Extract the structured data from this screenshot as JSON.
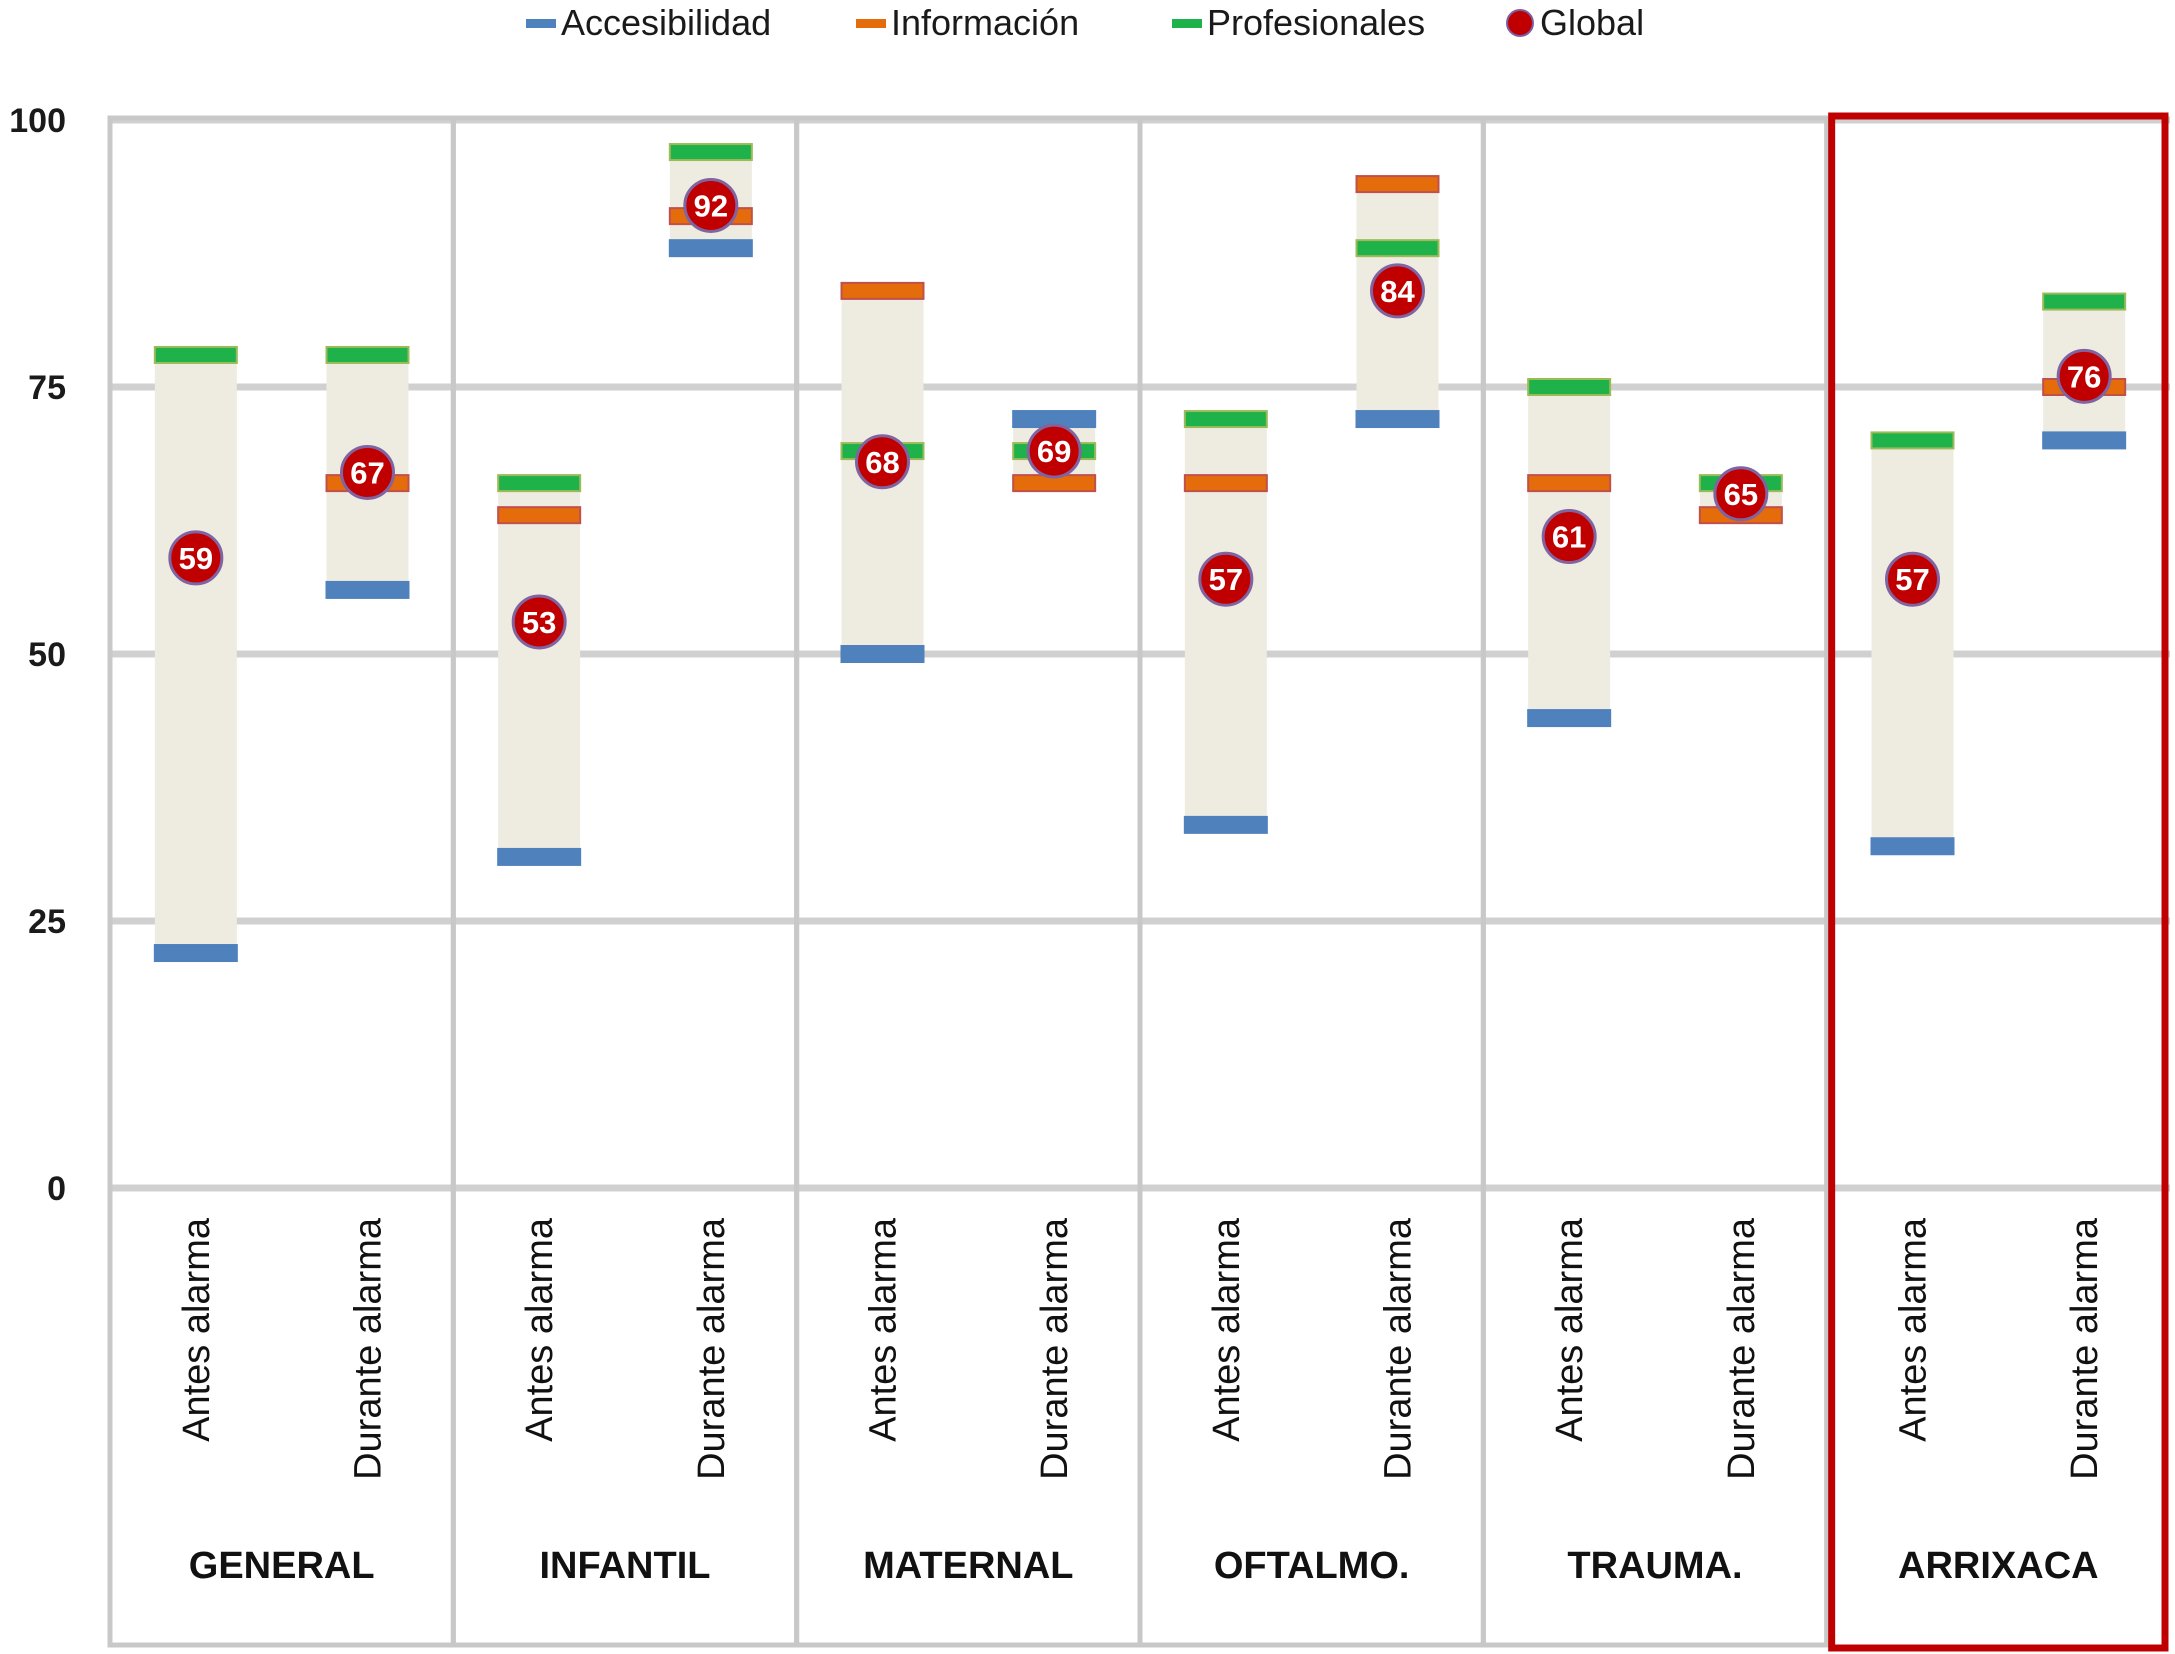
{
  "colors": {
    "accesibilidad": "#4f81bd",
    "informacion": "#e46c0a",
    "profesionales": "#1fb14a",
    "global": "#c00000",
    "range": "#eeebe0",
    "highlight": "#c00000"
  },
  "legend": [
    {
      "key": "accesibilidad",
      "label": "Accesibilidad"
    },
    {
      "key": "informacion",
      "label": "Información"
    },
    {
      "key": "profesionales",
      "label": "Profesionales"
    },
    {
      "key": "global",
      "label": "Global"
    }
  ],
  "chart_data": {
    "type": "bar",
    "ylim": [
      0,
      100
    ],
    "yticks": [
      0,
      25,
      50,
      75,
      100
    ],
    "grid": true,
    "legend_position": "top",
    "groups": [
      {
        "name": "GENERAL",
        "highlight": false,
        "categories": [
          {
            "label": "Antes alarma",
            "accesibilidad": 22,
            "informacion": null,
            "profesionales": 78,
            "global": 59
          },
          {
            "label": "Durante alarma",
            "accesibilidad": 56,
            "informacion": 66,
            "profesionales": 78,
            "global": 67
          }
        ]
      },
      {
        "name": "INFANTIL",
        "highlight": false,
        "categories": [
          {
            "label": "Antes alarma",
            "accesibilidad": 31,
            "informacion": 63,
            "profesionales": 66,
            "global": 53
          },
          {
            "label": "Durante alarma",
            "accesibilidad": 88,
            "informacion": 91,
            "profesionales": 97,
            "global": 92
          }
        ]
      },
      {
        "name": "MATERNAL",
        "highlight": false,
        "categories": [
          {
            "label": "Antes alarma",
            "accesibilidad": 50,
            "informacion": 84,
            "profesionales": 69,
            "global": 68
          },
          {
            "label": "Durante alarma",
            "accesibilidad": 72,
            "informacion": 66,
            "profesionales": 69,
            "global": 69
          }
        ]
      },
      {
        "name": "OFTALMO.",
        "highlight": false,
        "categories": [
          {
            "label": "Antes alarma",
            "accesibilidad": 34,
            "informacion": 66,
            "profesionales": 72,
            "global": 57
          },
          {
            "label": "Durante alarma",
            "accesibilidad": 72,
            "informacion": 94,
            "profesionales": 88,
            "global": 84
          }
        ]
      },
      {
        "name": "TRAUMA.",
        "highlight": false,
        "categories": [
          {
            "label": "Antes alarma",
            "accesibilidad": 44,
            "informacion": 66,
            "profesionales": 75,
            "global": 61
          },
          {
            "label": "Durante alarma",
            "accesibilidad": null,
            "informacion": 63,
            "profesionales": 66,
            "global": 65
          }
        ]
      },
      {
        "name": "ARRIXACA",
        "highlight": true,
        "categories": [
          {
            "label": "Antes alarma",
            "accesibilidad": 32,
            "informacion": null,
            "profesionales": 70,
            "global": 57
          },
          {
            "label": "Durante alarma",
            "accesibilidad": 70,
            "informacion": 75,
            "profesionales": 83,
            "global": 76
          }
        ]
      }
    ]
  }
}
